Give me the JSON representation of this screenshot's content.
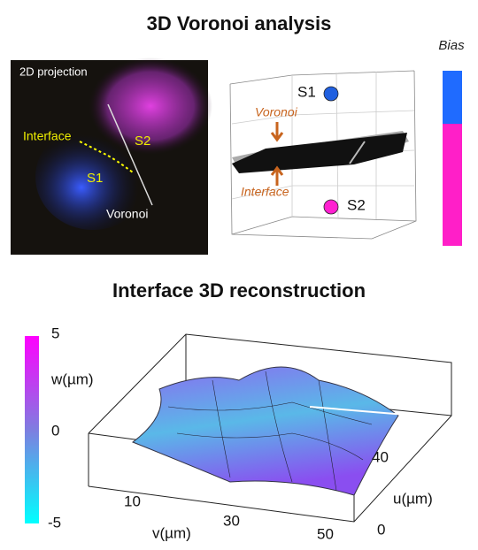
{
  "top": {
    "title": "3D Voronoi analysis",
    "image": {
      "label": "2D projection",
      "interface": "Interface",
      "s1": "S1",
      "s2": "S2",
      "voronoi": "Voronoi"
    },
    "diagram": {
      "s1": "S1",
      "s2": "S2",
      "voronoi": "Voronoi",
      "interface": "Interface"
    },
    "bias": "Bias"
  },
  "bottom": {
    "title": "Interface 3D reconstruction",
    "colorbar": {
      "label": "w(µm)",
      "ticks": [
        "5",
        "0",
        "-5"
      ]
    },
    "v_axis": {
      "label": "v(µm)",
      "ticks": [
        "10",
        "30",
        "50"
      ]
    },
    "u_axis": {
      "label": "u(µm)",
      "ticks": [
        "40",
        "0"
      ]
    }
  }
}
